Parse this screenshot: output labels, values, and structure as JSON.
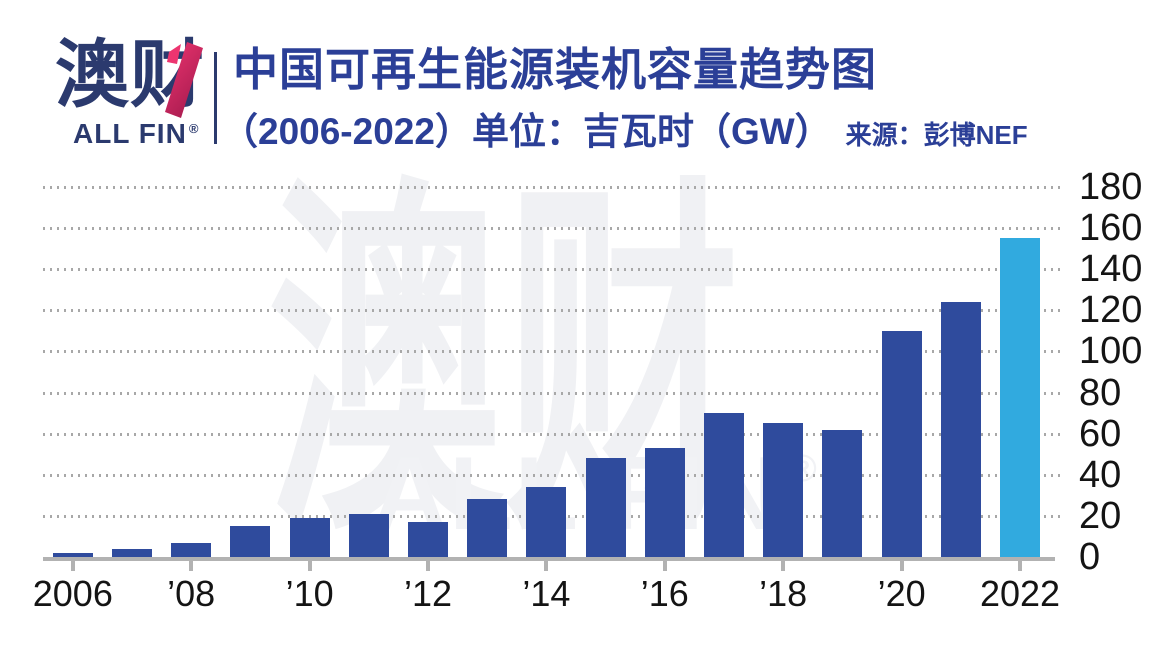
{
  "brand": {
    "logo_main": "澳财",
    "logo_sub": "ALL FIN",
    "logo_reg": "®",
    "navy": "#2B3A6E",
    "accent_pink": "#E93069",
    "accent_crimson": "#A91C50"
  },
  "header": {
    "title": "中国可再生能源装机容量趋势图",
    "subtitle": "（2006-2022）单位：吉瓦时（GW）",
    "source": "来源：彭博NEF",
    "title_color": "#2B3F97"
  },
  "watermark": {
    "main": "澳财",
    "sub": "ALL FIN",
    "reg": "®"
  },
  "chart_data": {
    "type": "bar",
    "title": "中国可再生能源装机容量趋势图（2006-2022）",
    "unit_label": "吉瓦时（GW）",
    "source": "彭博NEF",
    "categories": [
      2006,
      2007,
      2008,
      2009,
      2010,
      2011,
      2012,
      2013,
      2014,
      2015,
      2016,
      2017,
      2018,
      2019,
      2020,
      2021,
      2022
    ],
    "values": [
      2,
      4,
      7,
      15,
      19,
      21,
      17,
      28,
      34,
      48,
      53,
      70,
      65,
      62,
      110,
      124,
      155
    ],
    "x_tick_labels": [
      "2006",
      "’08",
      "’10",
      "’12",
      "’14",
      "’16",
      "’18",
      "’20",
      "2022"
    ],
    "y_ticks": [
      0,
      20,
      40,
      60,
      80,
      100,
      120,
      140,
      160,
      180
    ],
    "ylim": [
      0,
      180
    ],
    "bar_color": "#2F4B9D",
    "highlight_color": "#31AADF",
    "highlight_index": 16,
    "grid": "horizontal-dotted",
    "legend": "none",
    "y_axis_side": "right"
  }
}
